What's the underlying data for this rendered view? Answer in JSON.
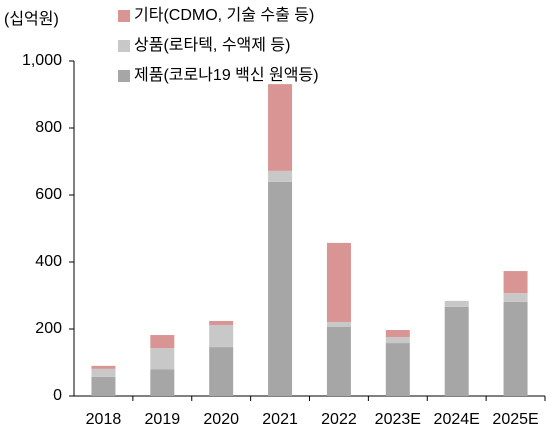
{
  "chart_data": {
    "type": "stacked_bar",
    "unit_label": "(십억원)",
    "categories": [
      "2018",
      "2019",
      "2020",
      "2021",
      "2022",
      "2023E",
      "2024E",
      "2025E"
    ],
    "series": [
      {
        "name": "기타(CDMO, 기술 수출 등)",
        "color": "#d99594",
        "values": [
          9,
          39,
          12,
          259,
          236,
          21,
          0,
          66
        ]
      },
      {
        "name": "상품(로타텍, 수액제 등)",
        "color": "#c8c8c8",
        "values": [
          24,
          63,
          66,
          33,
          15,
          18,
          18,
          26
        ]
      },
      {
        "name": "제품(코로나19 백신 원액등)",
        "color": "#a6a6a6",
        "values": [
          57,
          80,
          146,
          639,
          206,
          158,
          266,
          281
        ]
      }
    ],
    "ylim": [
      0,
      1000
    ],
    "yticks": [
      0,
      200,
      400,
      600,
      800,
      {
        "value": 1000,
        "label": "1,000"
      }
    ],
    "grid": false
  }
}
